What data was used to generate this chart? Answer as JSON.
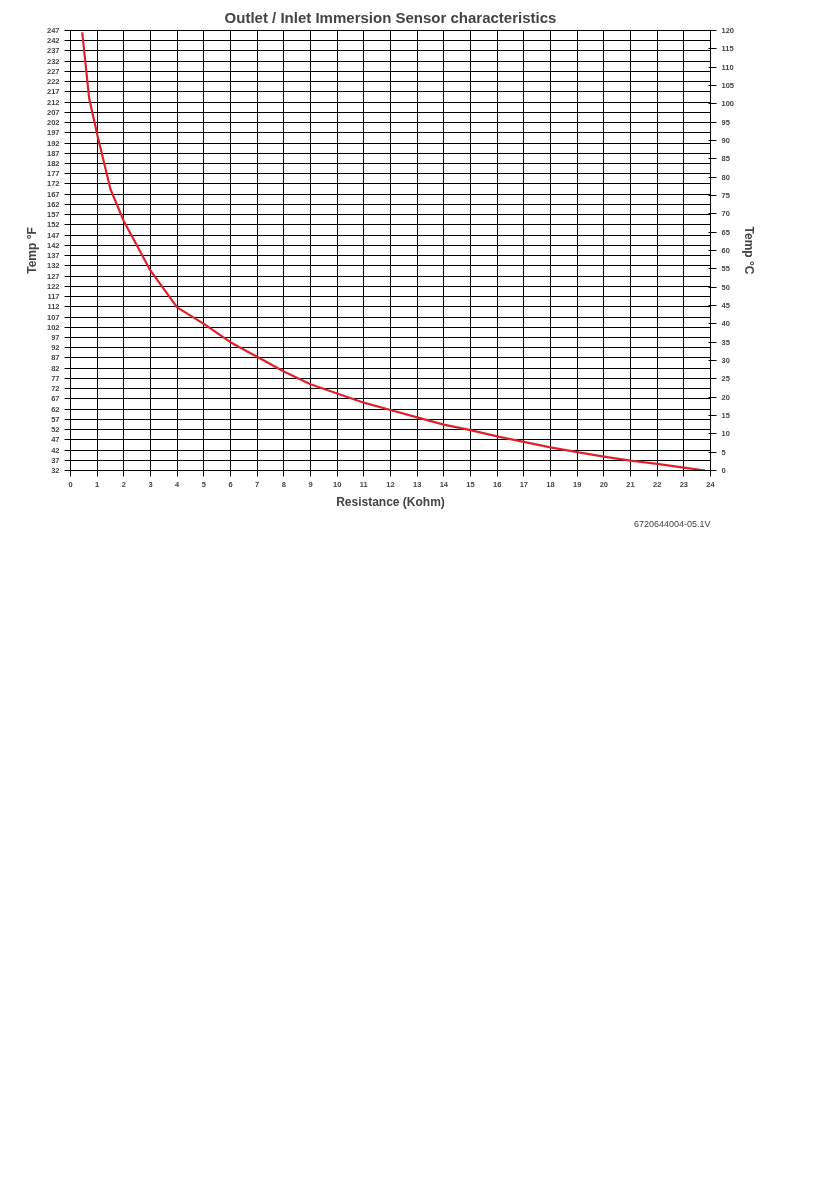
{
  "chart_data": {
    "type": "line",
    "title": "Outlet / Inlet Immersion Sensor characteristics",
    "xlabel": "Resistance (Kohm)",
    "ylabel": "Temp °F",
    "y2label": "Temp °C",
    "x": [
      0.44,
      0.7,
      1.0,
      1.5,
      2,
      3,
      4,
      5,
      6,
      7,
      8,
      9,
      10,
      11,
      12,
      13,
      14,
      15,
      16,
      17,
      18,
      19,
      20,
      21,
      22,
      23,
      23.8
    ],
    "series": [
      {
        "color": "#e0202a",
        "axis": "y2",
        "values": [
          119.5,
          101.5,
          91.7,
          76.7,
          68,
          54.5,
          44.5,
          40,
          35,
          31,
          27,
          23.5,
          21,
          18.5,
          16.5,
          14.5,
          12.5,
          11,
          9.3,
          7.8,
          6.3,
          5,
          3.8,
          2.7,
          1.8,
          0.8,
          0
        ]
      }
    ],
    "xlim": [
      0,
      24
    ],
    "xticks": [
      0,
      1,
      2,
      3,
      4,
      5,
      6,
      7,
      8,
      9,
      10,
      11,
      12,
      13,
      14,
      15,
      16,
      17,
      18,
      19,
      20,
      21,
      22,
      23,
      24
    ],
    "ylim": [
      32,
      247
    ],
    "yticks": [
      32,
      37,
      42,
      47,
      52,
      57,
      62,
      67,
      72,
      77,
      82,
      87,
      92,
      97,
      102,
      107,
      112,
      117,
      122,
      127,
      132,
      137,
      142,
      147,
      152,
      157,
      162,
      167,
      172,
      177,
      182,
      187,
      192,
      197,
      202,
      207,
      212,
      217,
      222,
      227,
      232,
      237,
      242,
      247
    ],
    "y2lim": [
      0,
      120
    ],
    "y2ticks": [
      0,
      5,
      10,
      15,
      20,
      25,
      30,
      35,
      40,
      45,
      50,
      55,
      60,
      65,
      70,
      75,
      80,
      85,
      90,
      95,
      100,
      105,
      110,
      115,
      120
    ],
    "grid": true,
    "marker": "none",
    "line_style": "solid",
    "annotations": [
      "6720644004-05.1V"
    ]
  }
}
